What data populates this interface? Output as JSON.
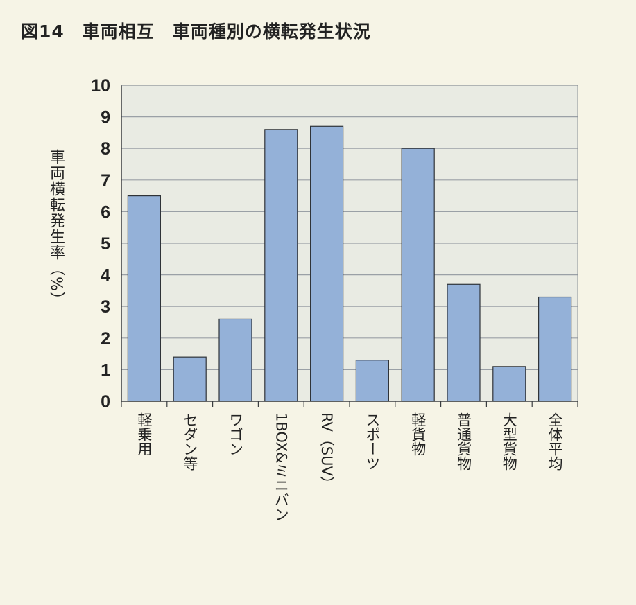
{
  "title": "図14　車両相互　車両種別の横転発生状況",
  "chart_data": {
    "type": "bar",
    "title": "図14　車両相互　車両種別の横転発生状況",
    "xlabel": "",
    "ylabel": "車両横転発生率（%）",
    "categories": [
      "軽乗用",
      "セダン等",
      "ワゴン",
      "1BOX&ミニバン",
      "RV（SUV）",
      "スポーツ",
      "軽貨物",
      "普通貨物",
      "大型貨物",
      "全体平均"
    ],
    "values": [
      6.5,
      1.4,
      2.6,
      8.6,
      8.7,
      1.3,
      8.0,
      3.7,
      1.1,
      3.3
    ],
    "ylim": [
      0,
      10
    ],
    "yticks": [
      0,
      1,
      2,
      3,
      4,
      5,
      6,
      7,
      8,
      9,
      10
    ],
    "grid": true,
    "bar_color": "#94b1d8",
    "plot_background": "#e9ebe3",
    "gridline_color": "#9aa0a6"
  }
}
